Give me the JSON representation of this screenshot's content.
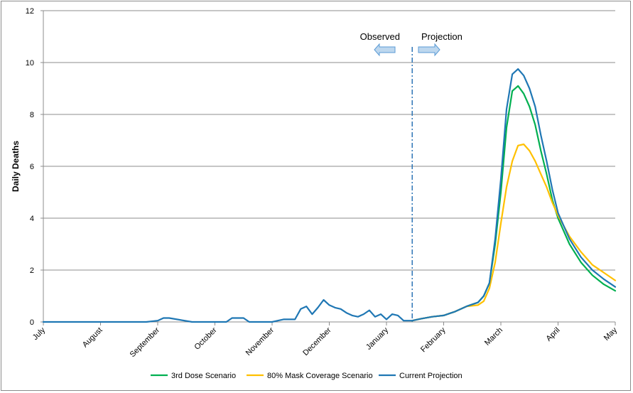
{
  "chart_data": {
    "type": "line",
    "ylabel": "Daily Deaths",
    "ylim": [
      0,
      12
    ],
    "yticks": [
      "0",
      "2",
      "4",
      "6",
      "8",
      "10",
      "12"
    ],
    "x_domain": [
      0,
      10
    ],
    "x_tick_labels": [
      "July",
      "August",
      "September",
      "October",
      "November",
      "December",
      "January",
      "February",
      "March",
      "April",
      "May"
    ],
    "grid": "horizontal",
    "legend_position": "bottom",
    "divider_x": 6.45,
    "annotations": {
      "observed": "Observed",
      "projection": "Projection"
    },
    "colors": {
      "grid": "#8c8c8c",
      "divider": "#2e75b6",
      "arrow_fill": "#bdd7ee",
      "arrow_stroke": "#5b9bd5"
    },
    "series": [
      {
        "name": "3rd Dose Scenario",
        "color": "#00b050",
        "x": [
          6.45,
          6.6,
          6.8,
          7.0,
          7.2,
          7.4,
          7.6,
          7.7,
          7.8,
          7.9,
          8.0,
          8.1,
          8.2,
          8.3,
          8.4,
          8.5,
          8.6,
          8.7,
          8.8,
          8.9,
          9.0,
          9.2,
          9.4,
          9.6,
          9.8,
          10.0
        ],
        "y": [
          0.05,
          0.12,
          0.2,
          0.25,
          0.4,
          0.6,
          0.75,
          1.0,
          1.5,
          3.0,
          5.0,
          7.5,
          8.9,
          9.1,
          8.8,
          8.3,
          7.6,
          6.6,
          5.7,
          4.7,
          4.0,
          3.0,
          2.3,
          1.8,
          1.45,
          1.2
        ]
      },
      {
        "name": "80% Mask Coverage Scenario",
        "color": "#ffc000",
        "x": [
          6.45,
          6.6,
          6.8,
          7.0,
          7.2,
          7.4,
          7.6,
          7.7,
          7.8,
          7.9,
          8.0,
          8.1,
          8.2,
          8.3,
          8.4,
          8.5,
          8.6,
          8.7,
          8.8,
          8.9,
          9.0,
          9.2,
          9.4,
          9.6,
          9.8,
          10.0
        ],
        "y": [
          0.05,
          0.12,
          0.2,
          0.25,
          0.4,
          0.6,
          0.65,
          0.8,
          1.3,
          2.3,
          3.8,
          5.2,
          6.2,
          6.8,
          6.85,
          6.6,
          6.2,
          5.7,
          5.2,
          4.6,
          4.1,
          3.3,
          2.7,
          2.2,
          1.9,
          1.6
        ]
      },
      {
        "name": "Current Projection",
        "color": "#1f77b4",
        "x": [
          0.0,
          1.0,
          1.8,
          2.0,
          2.1,
          2.2,
          2.6,
          3.2,
          3.3,
          3.5,
          3.6,
          4.0,
          4.1,
          4.2,
          4.4,
          4.5,
          4.6,
          4.7,
          4.8,
          4.9,
          5.0,
          5.1,
          5.2,
          5.3,
          5.4,
          5.5,
          5.6,
          5.7,
          5.8,
          5.9,
          6.0,
          6.1,
          6.2,
          6.3,
          6.45,
          6.6,
          6.8,
          7.0,
          7.2,
          7.4,
          7.6,
          7.7,
          7.8,
          7.9,
          8.0,
          8.1,
          8.2,
          8.3,
          8.4,
          8.5,
          8.6,
          8.7,
          8.8,
          8.9,
          9.0,
          9.2,
          9.4,
          9.6,
          9.8,
          10.0
        ],
        "y": [
          0.0,
          0.0,
          0.0,
          0.05,
          0.15,
          0.15,
          0.0,
          0.0,
          0.15,
          0.15,
          0.0,
          0.0,
          0.05,
          0.1,
          0.1,
          0.5,
          0.6,
          0.3,
          0.55,
          0.85,
          0.65,
          0.55,
          0.5,
          0.35,
          0.25,
          0.2,
          0.3,
          0.45,
          0.2,
          0.3,
          0.1,
          0.3,
          0.25,
          0.05,
          0.05,
          0.12,
          0.2,
          0.25,
          0.4,
          0.6,
          0.75,
          1.0,
          1.5,
          3.2,
          5.5,
          8.2,
          9.55,
          9.75,
          9.5,
          9.0,
          8.3,
          7.2,
          6.2,
          5.1,
          4.2,
          3.2,
          2.5,
          2.0,
          1.65,
          1.35
        ]
      }
    ]
  }
}
